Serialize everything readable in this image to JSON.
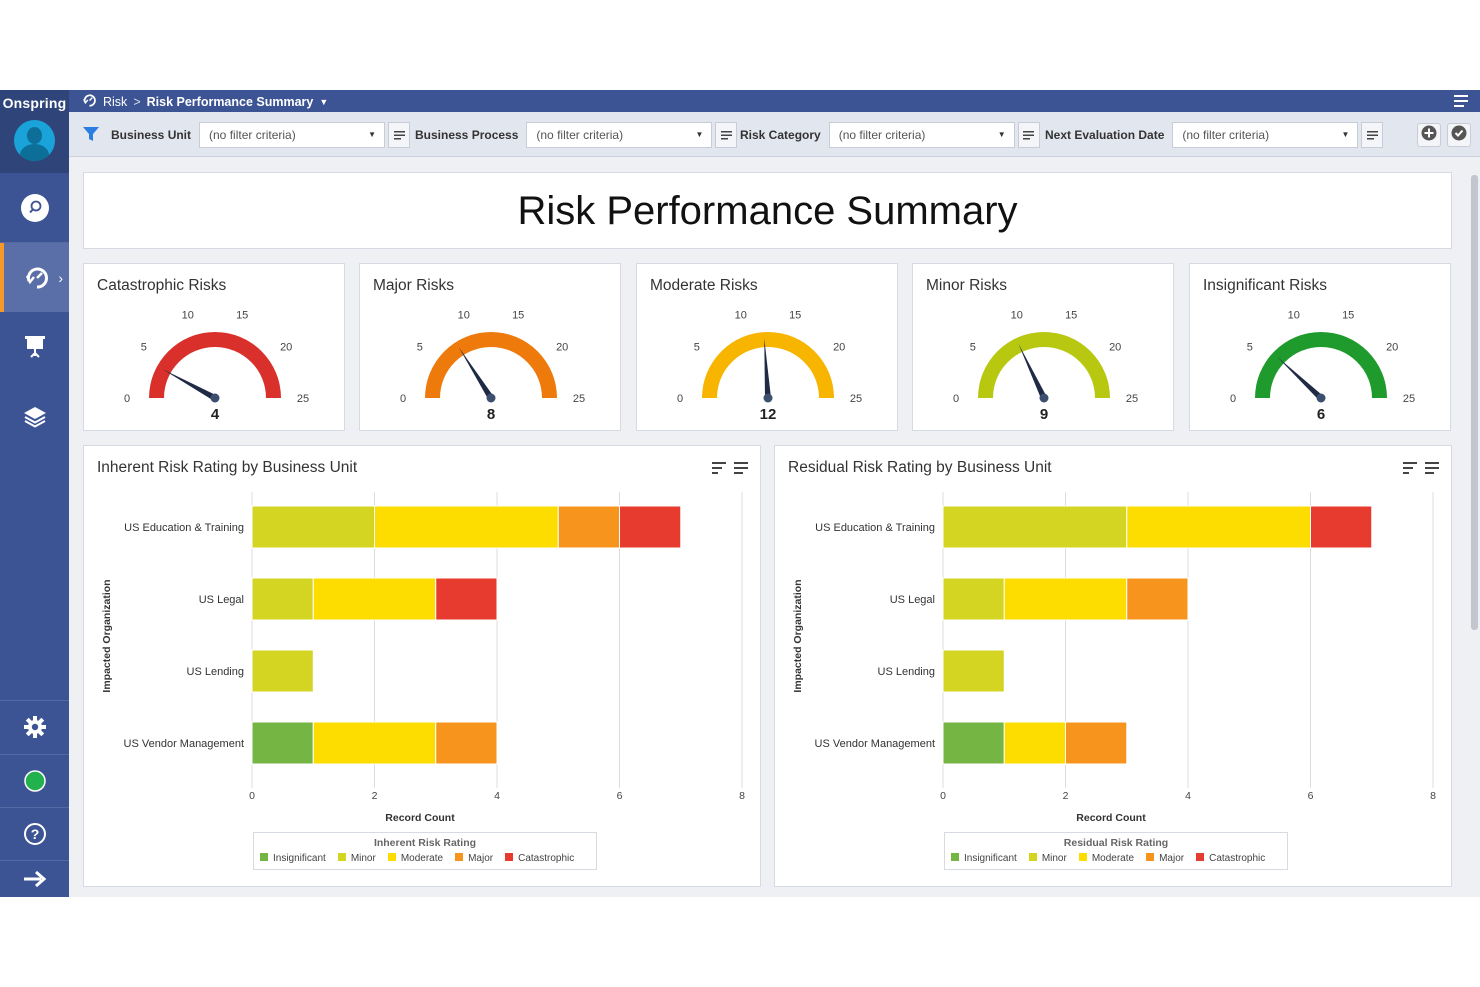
{
  "app": {
    "brand": "Onspring"
  },
  "breadcrumb": {
    "root": "Risk",
    "separator": ">",
    "current": "Risk Performance Summary",
    "dropdown_icon": "caret-down-icon"
  },
  "sidebar": {
    "items": [
      {
        "name": "search",
        "icon": "search-icon"
      },
      {
        "name": "risk",
        "icon": "risk-refresh-icon",
        "active": true
      },
      {
        "name": "presentation",
        "icon": "presentation-icon"
      },
      {
        "name": "layers",
        "icon": "layers-icon"
      },
      {
        "name": "settings",
        "icon": "gear-icon"
      },
      {
        "name": "status",
        "icon": "status-dot-icon"
      },
      {
        "name": "help",
        "icon": "help-icon"
      },
      {
        "name": "logout",
        "icon": "arrow-right-icon"
      }
    ],
    "active_accent": "#f39a2b"
  },
  "filters": [
    {
      "label": "Business Unit",
      "value": "(no filter criteria)"
    },
    {
      "label": "Business Process",
      "value": "(no filter criteria)"
    },
    {
      "label": "Risk Category",
      "value": "(no filter criteria)"
    },
    {
      "label": "Next Evaluation Date",
      "value": "(no filter criteria)"
    }
  ],
  "page": {
    "title": "Risk Performance Summary"
  },
  "gauges": [
    {
      "title": "Catastrophic Risks",
      "value": 4,
      "color": "#d9302b"
    },
    {
      "title": "Major Risks",
      "value": 8,
      "color": "#ee7a0c"
    },
    {
      "title": "Moderate Risks",
      "value": 12,
      "color": "#f7b500"
    },
    {
      "title": "Minor Risks",
      "value": 9,
      "color": "#b8c710"
    },
    {
      "title": "Insignificant Risks",
      "value": 6,
      "color": "#1f9a2c"
    }
  ],
  "gauge_scale": {
    "min": 0,
    "max": 25,
    "ticks": [
      "0",
      "5",
      "10",
      "15",
      "20",
      "25"
    ]
  },
  "chart_data": [
    {
      "type": "bar",
      "orientation": "horizontal",
      "stacked": true,
      "title": "Inherent Risk Rating by Business Unit",
      "xlabel": "Record Count",
      "ylabel": "Impacted Organization",
      "xlim": [
        0,
        8
      ],
      "xticks": [
        0,
        2,
        4,
        6,
        8
      ],
      "categories": [
        "US Education & Training",
        "US Legal",
        "US Lending",
        "US Vendor Management"
      ],
      "legend_title": "Inherent Risk Rating",
      "legend_position": "bottom",
      "series": [
        {
          "name": "Insignificant",
          "color": "#74b543",
          "values": [
            0,
            0,
            0,
            1
          ]
        },
        {
          "name": "Minor",
          "color": "#d4d422",
          "values": [
            2,
            1,
            1,
            0
          ]
        },
        {
          "name": "Moderate",
          "color": "#fddd00",
          "values": [
            3,
            2,
            0,
            2
          ]
        },
        {
          "name": "Major",
          "color": "#f7941d",
          "values": [
            1,
            0,
            0,
            1
          ]
        },
        {
          "name": "Catastrophic",
          "color": "#e63b2e",
          "values": [
            1,
            1,
            0,
            0
          ]
        }
      ]
    },
    {
      "type": "bar",
      "orientation": "horizontal",
      "stacked": true,
      "title": "Residual Risk Rating by Business Unit",
      "xlabel": "Record Count",
      "ylabel": "Impacted Organization",
      "xlim": [
        0,
        8
      ],
      "xticks": [
        0,
        2,
        4,
        6,
        8
      ],
      "categories": [
        "US Education & Training",
        "US Legal",
        "US Lending",
        "US Vendor Management"
      ],
      "legend_title": "Residual Risk Rating",
      "legend_position": "bottom",
      "series": [
        {
          "name": "Insignificant",
          "color": "#74b543",
          "values": [
            0,
            0,
            0,
            1
          ]
        },
        {
          "name": "Minor",
          "color": "#d4d422",
          "values": [
            3,
            1,
            1,
            0
          ]
        },
        {
          "name": "Moderate",
          "color": "#fddd00",
          "values": [
            3,
            2,
            0,
            1
          ]
        },
        {
          "name": "Major",
          "color": "#f7941d",
          "values": [
            0,
            1,
            0,
            1
          ]
        },
        {
          "name": "Catastrophic",
          "color": "#e63b2e",
          "values": [
            1,
            0,
            0,
            0
          ]
        }
      ]
    }
  ]
}
